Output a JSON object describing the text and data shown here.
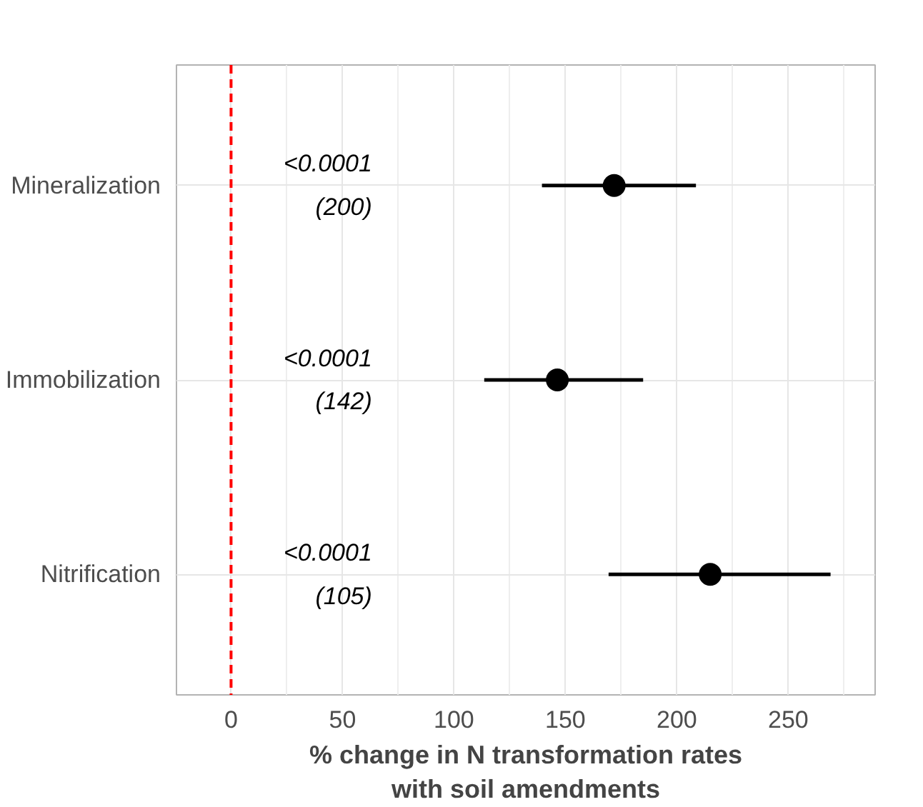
{
  "chart_data": {
    "type": "scatter",
    "orientation": "horizontal",
    "categories": [
      "Mineralization",
      "Immobilization",
      "Nitrification"
    ],
    "xlabel": "% change in N transformation rates\nwith soil amendments",
    "series": [
      {
        "color": "#000000",
        "values": [
          171.9,
          146.4,
          215.0
        ],
        "errors": [
          [
            139.5,
            208.6
          ],
          [
            113.6,
            184.9
          ],
          [
            169.4,
            269.0
          ]
        ]
      }
    ],
    "xlim": [
      -24.5,
      289
    ],
    "xticks": [
      0,
      50,
      100,
      150,
      200,
      250
    ],
    "grid": true,
    "marker": "circle",
    "ref_lines": [
      {
        "axis": "x",
        "value": 0,
        "color": "#ff0000",
        "line_style": "dashed"
      }
    ],
    "annotations": [
      "<0.0001\n(200)",
      "<0.0001\n(142)",
      "<0.0001\n(105)"
    ]
  }
}
